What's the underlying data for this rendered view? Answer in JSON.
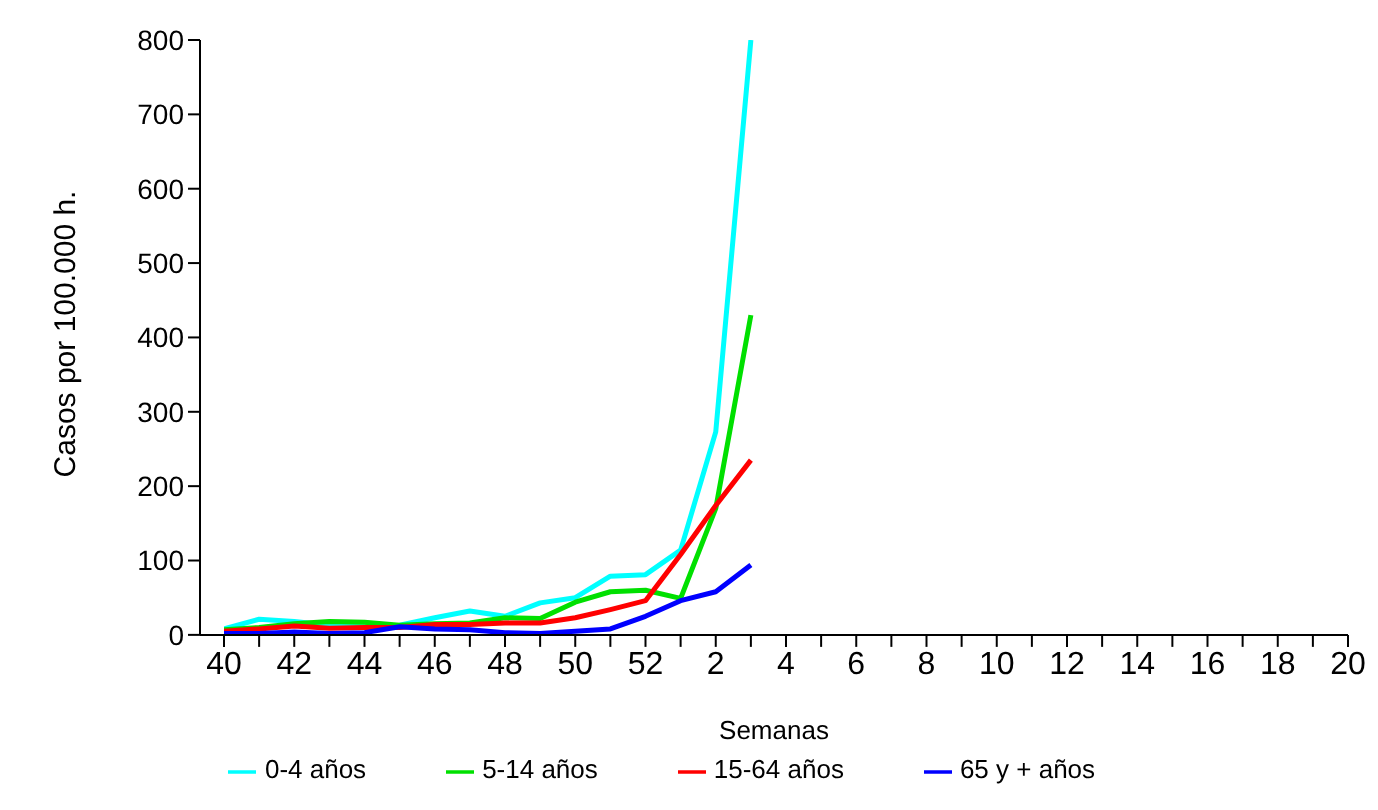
{
  "chart_data": {
    "type": "line",
    "xlabel": "Semanas",
    "ylabel": "Casos por 100.000 h.",
    "categories": [
      "40",
      null,
      "42",
      null,
      "44",
      null,
      "46",
      null,
      "48",
      null,
      "50",
      null,
      "52",
      null,
      "2",
      null,
      "4",
      null,
      "6",
      null,
      "8",
      null,
      "10",
      null,
      "12",
      null,
      "14",
      null,
      "16",
      null,
      "18",
      null,
      "20"
    ],
    "ylim": [
      0,
      800
    ],
    "yticks": [
      0,
      100,
      200,
      300,
      400,
      500,
      600,
      700,
      800
    ],
    "legend": "bottom",
    "marker": "none",
    "line_style": "solid",
    "series": [
      {
        "name": "0-4 años",
        "color": "#00ffff",
        "values": [
          8,
          21,
          18,
          13,
          11,
          13,
          23,
          32,
          25,
          43,
          50,
          79,
          81,
          114,
          273,
          800,
          null,
          null,
          null,
          null,
          null,
          null,
          null,
          null,
          null,
          null,
          null,
          null,
          null,
          null,
          null,
          null,
          null
        ]
      },
      {
        "name": "5-14 años",
        "color": "#00e000",
        "values": [
          7,
          10,
          15,
          18,
          17,
          13,
          15,
          16,
          23,
          22,
          44,
          58,
          60,
          49,
          170,
          430,
          null,
          null,
          null,
          null,
          null,
          null,
          null,
          null,
          null,
          null,
          null,
          null,
          null,
          null,
          null,
          null,
          null
        ]
      },
      {
        "name": "15-64 años",
        "color": "#ff0000",
        "values": [
          5,
          8,
          12,
          9,
          10,
          10,
          14,
          14,
          16,
          16,
          23,
          34,
          46,
          108,
          174,
          235,
          null,
          null,
          null,
          null,
          null,
          null,
          null,
          null,
          null,
          null,
          null,
          null,
          null,
          null,
          null,
          null,
          null
        ]
      },
      {
        "name": "65 y + años",
        "color": "#0000ff",
        "values": [
          2,
          2,
          4,
          2,
          3,
          11,
          8,
          7,
          3,
          2,
          5,
          8,
          25,
          46,
          58,
          94,
          null,
          null,
          null,
          null,
          null,
          null,
          null,
          null,
          null,
          null,
          null,
          null,
          null,
          null,
          null,
          null,
          null
        ]
      }
    ]
  }
}
